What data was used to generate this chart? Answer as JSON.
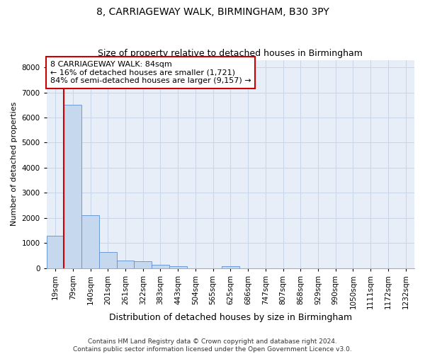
{
  "title1": "8, CARRIAGEWAY WALK, BIRMINGHAM, B30 3PY",
  "title2": "Size of property relative to detached houses in Birmingham",
  "xlabel": "Distribution of detached houses by size in Birmingham",
  "ylabel": "Number of detached properties",
  "categories": [
    "19sqm",
    "79sqm",
    "140sqm",
    "201sqm",
    "261sqm",
    "322sqm",
    "383sqm",
    "443sqm",
    "504sqm",
    "565sqm",
    "625sqm",
    "686sqm",
    "747sqm",
    "807sqm",
    "868sqm",
    "929sqm",
    "990sqm",
    "1050sqm",
    "1111sqm",
    "1172sqm",
    "1232sqm"
  ],
  "values": [
    1300,
    6500,
    2100,
    650,
    300,
    275,
    120,
    75,
    0,
    0,
    75,
    0,
    0,
    0,
    0,
    0,
    0,
    0,
    0,
    0,
    0
  ],
  "bar_color": "#c5d8ee",
  "bar_edge_color": "#5b8fd4",
  "red_line_x": 0.5,
  "annotation_text": "8 CARRIAGEWAY WALK: 84sqm\n← 16% of detached houses are smaller (1,721)\n84% of semi-detached houses are larger (9,157) →",
  "annotation_box_color": "#ffffff",
  "annotation_box_edge_color": "#cc0000",
  "red_line_color": "#cc0000",
  "grid_color": "#c8d4e8",
  "background_color": "#e8eef8",
  "footer_text": "Contains HM Land Registry data © Crown copyright and database right 2024.\nContains public sector information licensed under the Open Government Licence v3.0.",
  "ylim": [
    0,
    8300
  ],
  "title1_fontsize": 10,
  "title2_fontsize": 9,
  "xlabel_fontsize": 9,
  "ylabel_fontsize": 8,
  "tick_fontsize": 7.5,
  "annotation_fontsize": 8,
  "footer_fontsize": 6.5
}
